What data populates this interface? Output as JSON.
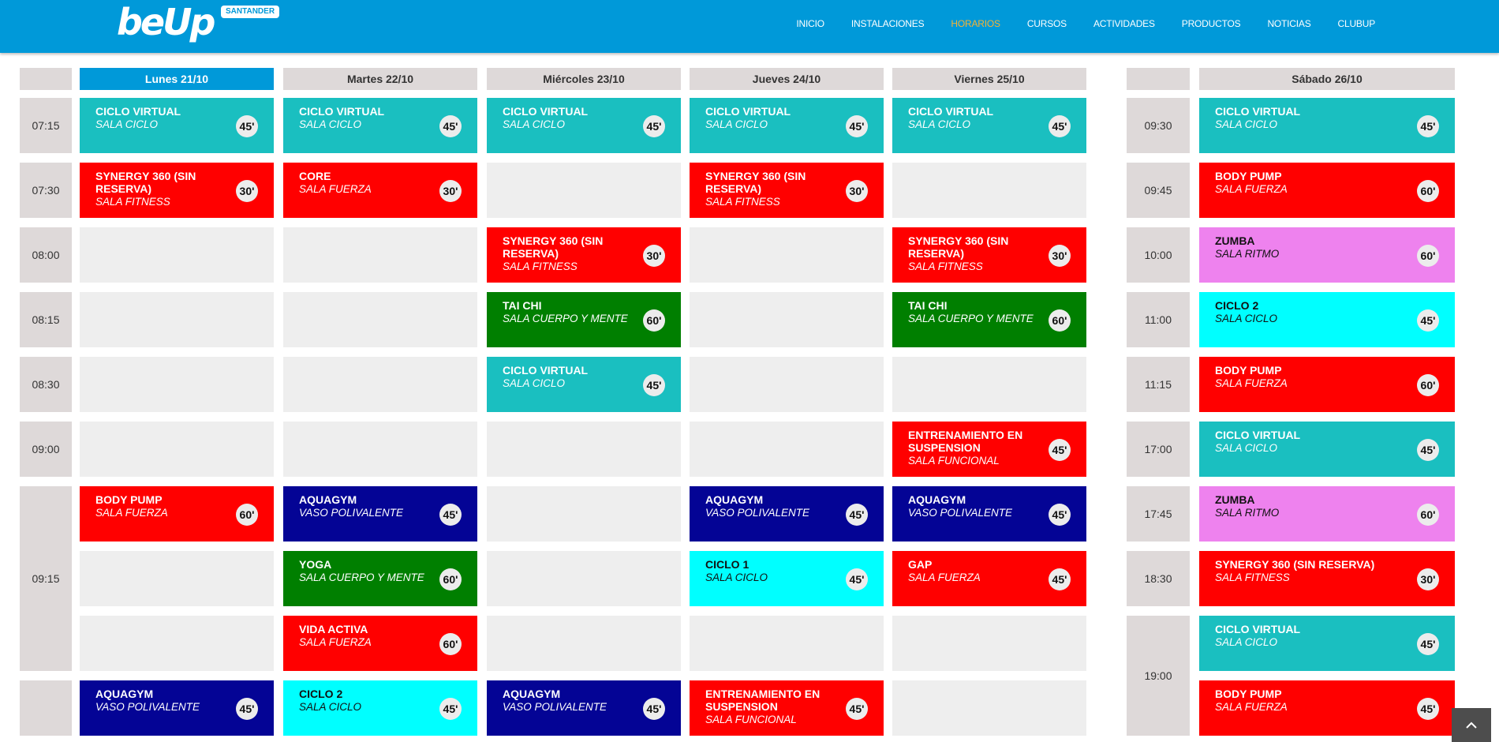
{
  "header": {
    "logo_text": "beUp",
    "logo_badge": "SANTANDER",
    "nav": [
      {
        "label": "INICIO",
        "active": false
      },
      {
        "label": "INSTALACIONES",
        "active": false
      },
      {
        "label": "HORARIOS",
        "active": true
      },
      {
        "label": "CURSOS",
        "active": false
      },
      {
        "label": "ACTIVIDADES",
        "active": false
      },
      {
        "label": "PRODUCTOS",
        "active": false
      },
      {
        "label": "NOTICIAS",
        "active": false
      },
      {
        "label": "CLUBUP",
        "active": false
      }
    ]
  },
  "colors": {
    "header": "#0099d9",
    "nav_active": "#f5b335",
    "teal": "#1abfc0",
    "red": "#ff0000",
    "green": "#007f00",
    "navy": "#040495",
    "cyan": "#00ffff",
    "pink": "#ee82ee",
    "empty_cell": "#eeeeee",
    "header_cell": "#ded9d9"
  },
  "weekdays": {
    "days": [
      "Lunes 21/10",
      "Martes 22/10",
      "Miércoles 23/10",
      "Jueves 24/10",
      "Viernes 25/10"
    ],
    "today_index": 0,
    "times": [
      "07:15",
      "07:30",
      "08:00",
      "08:15",
      "08:30",
      "09:00",
      "09:15",
      "09:15b"
    ],
    "time_labels": {
      "07:15": "07:15",
      "07:30": "07:30",
      "08:00": "08:00",
      "08:15": "08:15",
      "08:30": "08:30",
      "09:00": "09:00",
      "09:15": "09:15",
      "09:15b": ""
    },
    "rows": [
      [
        {
          "name": "CICLO VIRTUAL",
          "room": "SALA CICLO",
          "dur": "45'",
          "color": "teal"
        },
        {
          "name": "CICLO VIRTUAL",
          "room": "SALA CICLO",
          "dur": "45'",
          "color": "teal"
        },
        {
          "name": "CICLO VIRTUAL",
          "room": "SALA CICLO",
          "dur": "45'",
          "color": "teal"
        },
        {
          "name": "CICLO VIRTUAL",
          "room": "SALA CICLO",
          "dur": "45'",
          "color": "teal"
        },
        {
          "name": "CICLO VIRTUAL",
          "room": "SALA CICLO",
          "dur": "45'",
          "color": "teal"
        }
      ],
      [
        {
          "name": "SYNERGY 360 (SIN RESERVA)",
          "room": "SALA FITNESS",
          "dur": "30'",
          "color": "red"
        },
        {
          "name": "CORE",
          "room": "SALA FUERZA",
          "dur": "30'",
          "color": "red"
        },
        null,
        {
          "name": "SYNERGY 360 (SIN RESERVA)",
          "room": "SALA FITNESS",
          "dur": "30'",
          "color": "red"
        },
        null
      ],
      [
        null,
        null,
        {
          "name": "SYNERGY 360 (SIN RESERVA)",
          "room": "SALA FITNESS",
          "dur": "30'",
          "color": "red"
        },
        null,
        {
          "name": "SYNERGY 360 (SIN RESERVA)",
          "room": "SALA FITNESS",
          "dur": "30'",
          "color": "red"
        }
      ],
      [
        null,
        null,
        {
          "name": "TAI CHI",
          "room": "SALA CUERPO Y MENTE",
          "dur": "60'",
          "color": "green"
        },
        null,
        {
          "name": "TAI CHI",
          "room": "SALA CUERPO Y MENTE",
          "dur": "60'",
          "color": "green"
        }
      ],
      [
        null,
        null,
        {
          "name": "CICLO VIRTUAL",
          "room": "SALA CICLO",
          "dur": "45'",
          "color": "teal"
        },
        null,
        null
      ],
      [
        null,
        null,
        null,
        null,
        {
          "name": "ENTRENAMIENTO EN SUSPENSION",
          "room": "SALA FUNCIONAL",
          "dur": "45'",
          "color": "red"
        }
      ],
      [
        {
          "name": "BODY PUMP",
          "room": "SALA FUERZA",
          "dur": "60'",
          "color": "red"
        },
        {
          "name": "AQUAGYM",
          "room": "VASO POLIVALENTE",
          "dur": "45'",
          "color": "navy"
        },
        null,
        {
          "name": "AQUAGYM",
          "room": "VASO POLIVALENTE",
          "dur": "45'",
          "color": "navy"
        },
        {
          "name": "AQUAGYM",
          "room": "VASO POLIVALENTE",
          "dur": "45'",
          "color": "navy"
        }
      ],
      [
        null,
        {
          "name": "YOGA",
          "room": "SALA CUERPO Y MENTE",
          "dur": "60'",
          "color": "green"
        },
        null,
        {
          "name": "CICLO 1",
          "room": "SALA CICLO",
          "dur": "45'",
          "color": "cyan"
        },
        {
          "name": "GAP",
          "room": "SALA FUERZA",
          "dur": "45'",
          "color": "red"
        }
      ],
      [
        null,
        {
          "name": "VIDA ACTIVA",
          "room": "SALA FUERZA",
          "dur": "60'",
          "color": "red"
        },
        null,
        null,
        null
      ],
      [
        {
          "name": "AQUAGYM",
          "room": "VASO POLIVALENTE",
          "dur": "45'",
          "color": "navy"
        },
        {
          "name": "CICLO 2",
          "room": "SALA CICLO",
          "dur": "45'",
          "color": "cyan"
        },
        {
          "name": "AQUAGYM",
          "room": "VASO POLIVALENTE",
          "dur": "45'",
          "color": "navy"
        },
        {
          "name": "ENTRENAMIENTO EN SUSPENSION",
          "room": "SALA FUNCIONAL",
          "dur": "45'",
          "color": "red"
        },
        null
      ]
    ]
  },
  "saturday": {
    "day": "Sábado 26/10",
    "rows": [
      {
        "time": "09:30",
        "name": "CICLO VIRTUAL",
        "room": "SALA CICLO",
        "dur": "45'",
        "color": "teal"
      },
      {
        "time": "09:45",
        "name": "BODY PUMP",
        "room": "SALA FUERZA",
        "dur": "60'",
        "color": "red"
      },
      {
        "time": "10:00",
        "name": "ZUMBA",
        "room": "SALA RITMO",
        "dur": "60'",
        "color": "pink"
      },
      {
        "time": "11:00",
        "name": "CICLO 2",
        "room": "SALA CICLO",
        "dur": "45'",
        "color": "cyan"
      },
      {
        "time": "11:15",
        "name": "BODY PUMP",
        "room": "SALA FUERZA",
        "dur": "60'",
        "color": "red"
      },
      {
        "time": "17:00",
        "name": "CICLO VIRTUAL",
        "room": "SALA CICLO",
        "dur": "45'",
        "color": "teal"
      },
      {
        "time": "17:45",
        "name": "ZUMBA",
        "room": "SALA RITMO",
        "dur": "60'",
        "color": "pink"
      },
      {
        "time": "18:30",
        "name": "SYNERGY 360 (SIN RESERVA)",
        "room": "SALA FITNESS",
        "dur": "30'",
        "color": "red"
      },
      {
        "time": "19:00",
        "name": "CICLO VIRTUAL",
        "room": "SALA CICLO",
        "dur": "45'",
        "color": "teal"
      },
      {
        "time": "",
        "name": "BODY PUMP",
        "room": "SALA FUERZA",
        "dur": "45'",
        "color": "red"
      }
    ]
  },
  "left_times": [
    {
      "label": "07:15",
      "start": 0,
      "span": 1
    },
    {
      "label": "07:30",
      "start": 1,
      "span": 1
    },
    {
      "label": "08:00",
      "start": 2,
      "span": 1
    },
    {
      "label": "08:15",
      "start": 3,
      "span": 1
    },
    {
      "label": "08:30",
      "start": 4,
      "span": 1
    },
    {
      "label": "09:00",
      "start": 5,
      "span": 1
    },
    {
      "label": "09:15",
      "start": 6,
      "span": 3
    },
    {
      "label": "",
      "start": 9,
      "span": 1
    }
  ],
  "sat_times": [
    {
      "label": "09:30",
      "start": 0,
      "span": 1
    },
    {
      "label": "09:45",
      "start": 1,
      "span": 1
    },
    {
      "label": "10:00",
      "start": 2,
      "span": 1
    },
    {
      "label": "11:00",
      "start": 3,
      "span": 1
    },
    {
      "label": "11:15",
      "start": 4,
      "span": 1
    },
    {
      "label": "17:00",
      "start": 5,
      "span": 1
    },
    {
      "label": "17:45",
      "start": 6,
      "span": 1
    },
    {
      "label": "18:30",
      "start": 7,
      "span": 1
    },
    {
      "label": "19:00",
      "start": 8,
      "span": 2
    }
  ],
  "scroll_top_icon": "chevron-up-icon"
}
